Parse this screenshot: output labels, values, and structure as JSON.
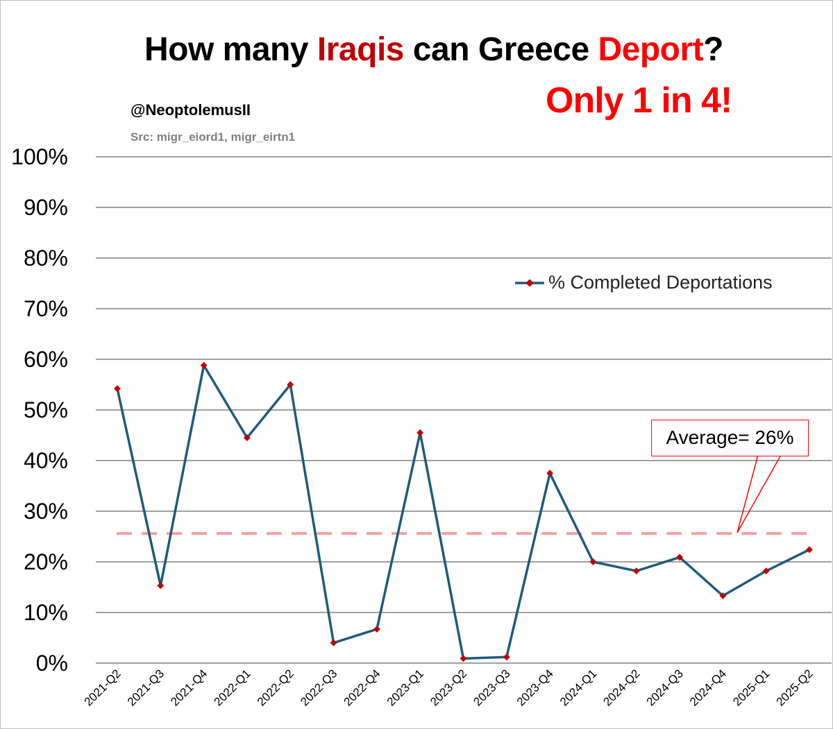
{
  "header": {
    "title_parts": [
      "How many ",
      "Iraqis",
      " can Greece ",
      "Deport",
      "?"
    ],
    "tagline": "Only 1 in 4!",
    "handle": "@NeoptolemusII",
    "source": "Src: migr_eiord1, migr_eirtn1"
  },
  "colors": {
    "line": "#1f5a7a",
    "marker": "#c00000",
    "average_line": "#f4a0a0",
    "title_iraqis": "#c00000",
    "title_deport": "#ff0000",
    "grid": "#808080"
  },
  "annotation": {
    "average_label": "Average= 26%",
    "average_value": 25.6
  },
  "chart_data": {
    "type": "line",
    "title": "How many Iraqis can Greece Deport?",
    "xlabel": "",
    "ylabel": "",
    "ylim": [
      0,
      100
    ],
    "y_ticks": [
      0,
      10,
      20,
      30,
      40,
      50,
      60,
      70,
      80,
      90,
      100
    ],
    "y_tick_labels": [
      "0%",
      "10%",
      "20%",
      "30%",
      "40%",
      "50%",
      "60%",
      "70%",
      "80%",
      "90%",
      "100%"
    ],
    "grid": true,
    "legend": "right",
    "categories": [
      "2021-Q2",
      "2021-Q3",
      "2021-Q4",
      "2022-Q1",
      "2022-Q2",
      "2022-Q3",
      "2022-Q4",
      "2023-Q1",
      "2023-Q2",
      "2023-Q3",
      "2023-Q4",
      "2024-Q1",
      "2024-Q2",
      "2024-Q3",
      "2024-Q4",
      "2025-Q1",
      "2025-Q2"
    ],
    "series": [
      {
        "name": "% Completed Deportations",
        "values": [
          54.2,
          15.3,
          58.8,
          44.5,
          55.0,
          4.0,
          6.7,
          45.5,
          0.9,
          1.2,
          37.5,
          20.0,
          18.2,
          20.9,
          13.3,
          18.2,
          22.4
        ]
      }
    ]
  }
}
